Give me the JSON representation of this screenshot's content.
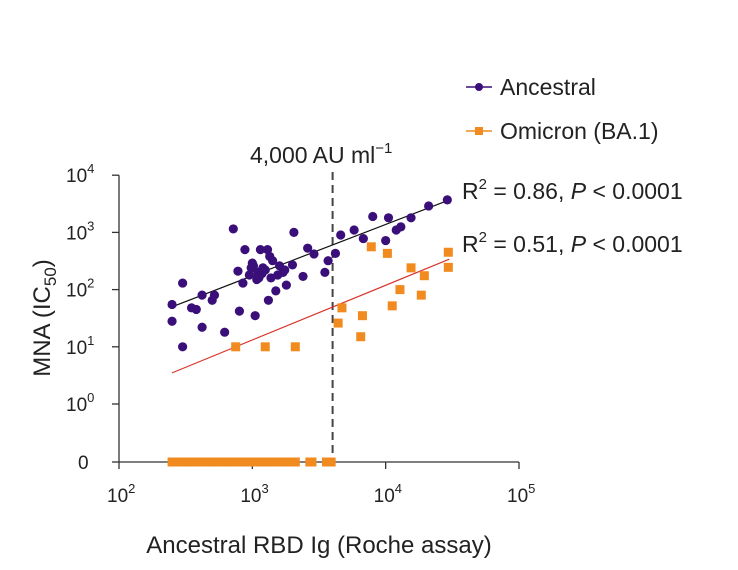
{
  "chart_data": {
    "type": "scatter",
    "title": "",
    "xlabel": "Ancestral RBD Ig (Roche assay)",
    "ylabel_main": "MNA (IC",
    "ylabel_sub": "50",
    "ylabel_close": ")",
    "x_scale": "log",
    "y_scale": "log with zero floor",
    "xlim": [
      100,
      100000
    ],
    "ylim": [
      0,
      10000
    ],
    "x_ticks": [
      {
        "base": "10",
        "exp": "2",
        "value": 100
      },
      {
        "base": "10",
        "exp": "3",
        "value": 1000
      },
      {
        "base": "10",
        "exp": "4",
        "value": 10000
      },
      {
        "base": "10",
        "exp": "5",
        "value": 100000
      }
    ],
    "y_ticks": [
      {
        "base": "0",
        "exp": "",
        "value": 0
      },
      {
        "base": "10",
        "exp": "0",
        "value": 1
      },
      {
        "base": "10",
        "exp": "1",
        "value": 10
      },
      {
        "base": "10",
        "exp": "2",
        "value": 100
      },
      {
        "base": "10",
        "exp": "3",
        "value": 1000
      },
      {
        "base": "10",
        "exp": "4",
        "value": 10000
      }
    ],
    "threshold": {
      "x": 4000,
      "label_main": "4,000 AU ml",
      "label_sup": "−1"
    },
    "series": [
      {
        "name": "Ancestral",
        "color": "#3a0f7a",
        "marker": "circle",
        "fit": {
          "x0": 250,
          "y0": 50,
          "x1": 30000,
          "y1": 3700
        },
        "stat": {
          "r_pre": "R",
          "r_sup": "2",
          "r_post": " = 0.86, ",
          "p": "P",
          "p_post": " < 0.0001"
        },
        "points": [
          [
            250,
            55
          ],
          [
            250,
            28
          ],
          [
            300,
            130
          ],
          [
            300,
            10
          ],
          [
            350,
            48
          ],
          [
            380,
            45
          ],
          [
            420,
            80
          ],
          [
            420,
            22
          ],
          [
            500,
            65
          ],
          [
            520,
            80
          ],
          [
            620,
            18
          ],
          [
            720,
            1150
          ],
          [
            780,
            210
          ],
          [
            800,
            42
          ],
          [
            850,
            130
          ],
          [
            880,
            500
          ],
          [
            950,
            180
          ],
          [
            980,
            240
          ],
          [
            1000,
            290
          ],
          [
            1020,
            260
          ],
          [
            1050,
            35
          ],
          [
            1080,
            150
          ],
          [
            1100,
            200
          ],
          [
            1120,
            160
          ],
          [
            1150,
            500
          ],
          [
            1180,
            190
          ],
          [
            1200,
            240
          ],
          [
            1250,
            220
          ],
          [
            1300,
            500
          ],
          [
            1320,
            65
          ],
          [
            1350,
            380
          ],
          [
            1380,
            160
          ],
          [
            1420,
            320
          ],
          [
            1500,
            95
          ],
          [
            1550,
            180
          ],
          [
            1600,
            260
          ],
          [
            1700,
            200
          ],
          [
            1750,
            220
          ],
          [
            1800,
            120
          ],
          [
            2000,
            270
          ],
          [
            2050,
            1000
          ],
          [
            2400,
            170
          ],
          [
            2600,
            530
          ],
          [
            2900,
            420
          ],
          [
            3500,
            200
          ],
          [
            3700,
            320
          ],
          [
            4200,
            430
          ],
          [
            4600,
            900
          ],
          [
            5800,
            1100
          ],
          [
            6800,
            780
          ],
          [
            8000,
            1900
          ],
          [
            10000,
            720
          ],
          [
            10500,
            1800
          ],
          [
            12000,
            1100
          ],
          [
            13000,
            1250
          ],
          [
            15500,
            1800
          ],
          [
            21000,
            2900
          ],
          [
            29000,
            3700
          ]
        ]
      },
      {
        "name": "Omicron (BA.1)",
        "color": "#f18b1f",
        "marker": "square",
        "fit": {
          "x0": 250,
          "y0": 3.5,
          "x1": 30000,
          "y1": 340
        },
        "stat": {
          "r_pre": "R",
          "r_sup": "2",
          "r_post": " = 0.51, ",
          "p": "P",
          "p_post": " < 0.0001"
        },
        "points": [
          [
            750,
            10
          ],
          [
            1250,
            10
          ],
          [
            2100,
            10
          ],
          [
            4400,
            26
          ],
          [
            4700,
            48
          ],
          [
            6500,
            15
          ],
          [
            6700,
            35
          ],
          [
            7800,
            560
          ],
          [
            10300,
            430
          ],
          [
            11200,
            52
          ],
          [
            12800,
            100
          ],
          [
            15500,
            240
          ],
          [
            18500,
            80
          ],
          [
            19500,
            175
          ],
          [
            29500,
            450
          ],
          [
            29500,
            245
          ],
          [
            250,
            0
          ],
          [
            265,
            0
          ],
          [
            280,
            0
          ],
          [
            300,
            0
          ],
          [
            320,
            0
          ],
          [
            340,
            0
          ],
          [
            360,
            0
          ],
          [
            380,
            0
          ],
          [
            400,
            0
          ],
          [
            420,
            0
          ],
          [
            450,
            0
          ],
          [
            500,
            0
          ],
          [
            520,
            0
          ],
          [
            550,
            0
          ],
          [
            600,
            0
          ],
          [
            620,
            0
          ],
          [
            700,
            0
          ],
          [
            750,
            0
          ],
          [
            800,
            0
          ],
          [
            850,
            0
          ],
          [
            900,
            0
          ],
          [
            950,
            0
          ],
          [
            1000,
            0
          ],
          [
            1050,
            0
          ],
          [
            1100,
            0
          ],
          [
            1150,
            0
          ],
          [
            1200,
            0
          ],
          [
            1250,
            0
          ],
          [
            1300,
            0
          ],
          [
            1350,
            0
          ],
          [
            1400,
            0
          ],
          [
            1450,
            0
          ],
          [
            1500,
            0
          ],
          [
            1550,
            0
          ],
          [
            1600,
            0
          ],
          [
            1700,
            0
          ],
          [
            1800,
            0
          ],
          [
            1900,
            0
          ],
          [
            2000,
            0
          ],
          [
            2100,
            0
          ],
          [
            2700,
            0
          ],
          [
            2800,
            0
          ],
          [
            3600,
            0
          ],
          [
            3900,
            0
          ]
        ]
      }
    ]
  }
}
